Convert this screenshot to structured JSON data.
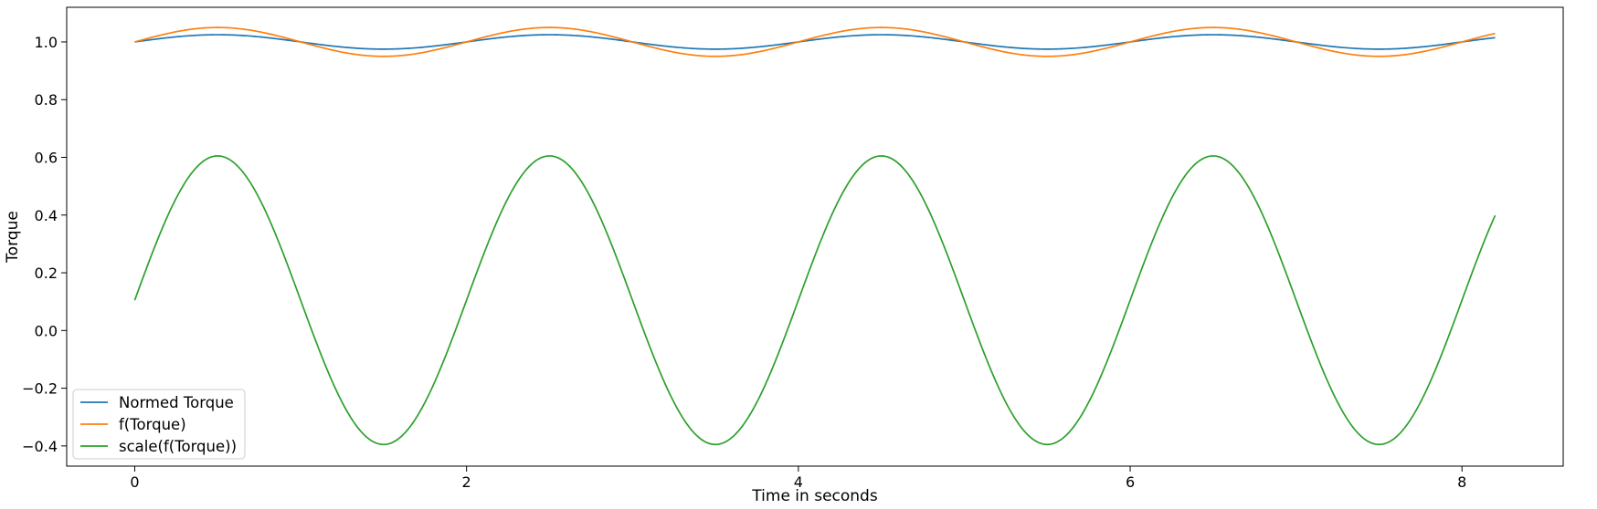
{
  "chart_data": {
    "type": "line",
    "title": "",
    "xlabel": "Time in seconds",
    "ylabel": "Torque",
    "xlim": [
      -0.41,
      8.61
    ],
    "ylim": [
      -0.47,
      1.12
    ],
    "xticks": [
      0,
      2,
      4,
      6,
      8
    ],
    "yticks": [
      -0.4,
      -0.2,
      0.0,
      0.2,
      0.4,
      0.6,
      0.8,
      1.0
    ],
    "ytick_labels": [
      "−0.4",
      "−0.2",
      "0.0",
      "0.2",
      "0.4",
      "0.6",
      "0.8",
      "1.0"
    ],
    "xtick_labels": [
      "0",
      "2",
      "4",
      "6",
      "8"
    ],
    "grid": false,
    "legend_position": "lower-left",
    "x_range": [
      0,
      8.2
    ],
    "period": 2.0,
    "series": [
      {
        "name": "Normed Torque",
        "color": "#1f77b4",
        "offset": 1.0,
        "amplitude": 0.025
      },
      {
        "name": "f(Torque)",
        "color": "#ff7f0e",
        "offset": 1.0,
        "amplitude": 0.05
      },
      {
        "name": "scale(f(Torque))",
        "color": "#2ca02c",
        "offset": 0.105,
        "amplitude": 0.5
      }
    ]
  }
}
